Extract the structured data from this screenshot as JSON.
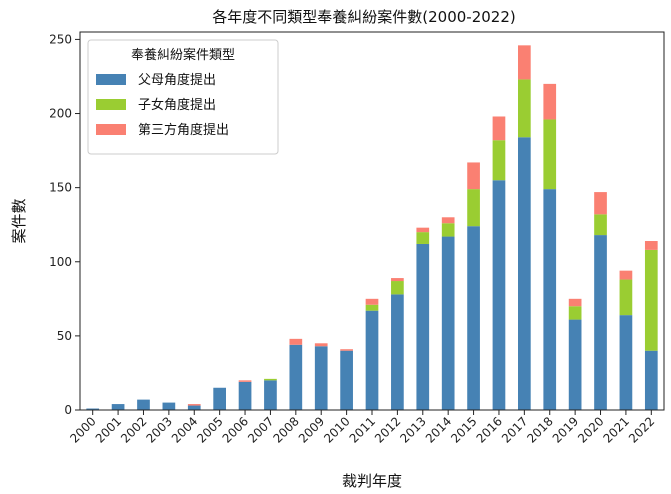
{
  "chart_data": {
    "type": "bar",
    "stacked": true,
    "title": "各年度不同類型奉養糾紛案件數(2000-2022)",
    "xlabel": "裁判年度",
    "ylabel": "案件數",
    "ylim": [
      0,
      255
    ],
    "yticks": [
      0,
      50,
      100,
      150,
      200,
      250
    ],
    "grid": false,
    "legend_title": "奉養糾紛案件類型",
    "legend_position": "top-left",
    "categories": [
      "2000",
      "2001",
      "2002",
      "2003",
      "2004",
      "2005",
      "2006",
      "2007",
      "2008",
      "2009",
      "2010",
      "2011",
      "2012",
      "2013",
      "2014",
      "2015",
      "2016",
      "2017",
      "2018",
      "2019",
      "2020",
      "2021",
      "2022"
    ],
    "series": [
      {
        "name": "父母角度提出",
        "color": "#4682b4",
        "values": [
          1,
          4,
          7,
          5,
          3,
          15,
          19,
          20,
          44,
          43,
          40,
          67,
          78,
          112,
          117,
          124,
          155,
          184,
          149,
          61,
          118,
          64,
          40
        ]
      },
      {
        "name": "子女角度提出",
        "color": "#9acd32",
        "values": [
          0,
          0,
          0,
          0,
          0,
          0,
          0,
          1,
          0,
          0,
          0,
          4,
          9,
          8,
          9,
          25,
          27,
          39,
          47,
          9,
          14,
          24,
          68
        ]
      },
      {
        "name": "第三方角度提出",
        "color": "#fa8072",
        "values": [
          0,
          0,
          0,
          0,
          1,
          0,
          1,
          0,
          4,
          2,
          1,
          4,
          2,
          3,
          4,
          18,
          16,
          23,
          24,
          5,
          15,
          6,
          6
        ]
      }
    ]
  }
}
